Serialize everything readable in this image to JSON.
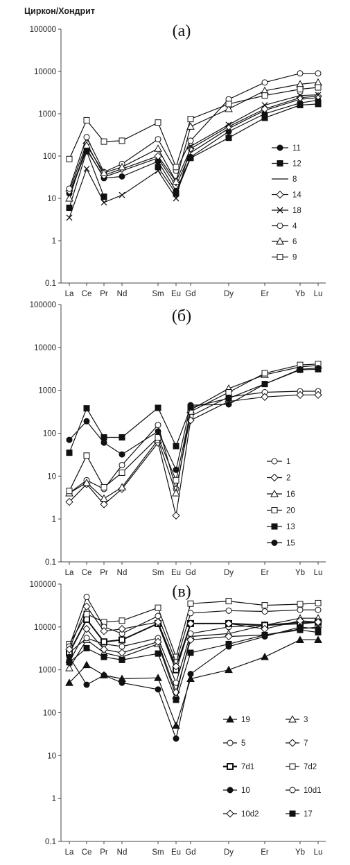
{
  "chart_data": [
    {
      "type": "line",
      "panel_label": "(a)",
      "ylabel": "Циркон/Хондрит",
      "yscale": "log",
      "ylim": [
        0.1,
        100000
      ],
      "yticks": [
        "0.1",
        "1",
        "10",
        "100",
        "1000",
        "10000",
        "100000"
      ],
      "categories": [
        "La",
        "Ce",
        "Pr",
        "Nd",
        "Sm",
        "Eu",
        "Gd",
        "Dy",
        "Er",
        "Yb",
        "Lu"
      ],
      "legend_position": "right",
      "series": [
        {
          "name": "11",
          "marker": "circle-filled",
          "values": [
            13,
            150,
            30,
            33,
            75,
            15,
            95,
            380,
            1000,
            1800,
            2100
          ]
        },
        {
          "name": "12",
          "marker": "square-filled",
          "values": [
            6,
            130,
            11,
            null,
            55,
            13,
            90,
            270,
            800,
            1600,
            1700
          ]
        },
        {
          "name": "8",
          "marker": "none",
          "values": [
            12,
            140,
            32,
            45,
            90,
            20,
            120,
            450,
            1200,
            2200,
            2400
          ]
        },
        {
          "name": "14",
          "marker": "diamond-open",
          "values": [
            15,
            200,
            35,
            50,
            100,
            25,
            150,
            500,
            1300,
            2400,
            2600
          ]
        },
        {
          "name": "18",
          "marker": "x",
          "values": [
            3.5,
            50,
            8,
            12,
            45,
            10,
            170,
            550,
            1600,
            2700,
            2800
          ]
        },
        {
          "name": "4",
          "marker": "circle-open",
          "values": [
            17,
            280,
            42,
            65,
            250,
            45,
            230,
            2200,
            5500,
            9000,
            9000
          ]
        },
        {
          "name": "6",
          "marker": "triangle-open",
          "values": [
            10,
            180,
            40,
            55,
            150,
            25,
            500,
            1300,
            3500,
            5000,
            5500
          ]
        },
        {
          "name": "9",
          "marker": "square-open",
          "values": [
            85,
            700,
            220,
            230,
            620,
            55,
            750,
            1700,
            2700,
            3800,
            4200
          ]
        }
      ]
    },
    {
      "type": "line",
      "panel_label": "(б)",
      "ylabel": "",
      "yscale": "log",
      "ylim": [
        0.1,
        100000
      ],
      "yticks": [
        "0.1",
        "1",
        "10",
        "100",
        "1000",
        "10000",
        "100000"
      ],
      "categories": [
        "La",
        "Ce",
        "Pr",
        "Nd",
        "Sm",
        "Eu",
        "Gd",
        "Dy",
        "Er",
        "Yb",
        "Lu"
      ],
      "legend_position": "right",
      "series": [
        {
          "name": "1",
          "marker": "circle-open",
          "values": [
            4,
            8,
            5,
            18,
            155,
            5,
            250,
            700,
            900,
            950,
            950
          ]
        },
        {
          "name": "2",
          "marker": "diamond-open",
          "values": [
            2.5,
            6.5,
            2.2,
            5,
            60,
            1.2,
            200,
            550,
            700,
            780,
            780
          ]
        },
        {
          "name": "16",
          "marker": "triangle-open",
          "values": [
            4,
            7,
            3,
            5.5,
            70,
            4,
            350,
            1100,
            2300,
            3500,
            3800
          ]
        },
        {
          "name": "20",
          "marker": "square-open",
          "values": [
            4.5,
            30,
            5.5,
            12,
            80,
            8,
            320,
            900,
            2500,
            3900,
            4100
          ]
        },
        {
          "name": "13",
          "marker": "square-filled",
          "values": [
            35,
            380,
            80,
            80,
            390,
            50,
            400,
            650,
            1400,
            3000,
            3100
          ]
        },
        {
          "name": "15",
          "marker": "circle-filled",
          "values": [
            70,
            190,
            60,
            32,
            110,
            14,
            450,
            470,
            1400,
            3100,
            3300
          ]
        }
      ]
    },
    {
      "type": "line",
      "panel_label": "(в)",
      "ylabel": "",
      "yscale": "log",
      "ylim": [
        0.1,
        100000
      ],
      "yticks": [
        "0.1",
        "1",
        "10",
        "100",
        "1000",
        "10000",
        "100000"
      ],
      "categories": [
        "La",
        "Ce",
        "Pr",
        "Nd",
        "Sm",
        "Eu",
        "Gd",
        "Dy",
        "Er",
        "Yb",
        "Lu"
      ],
      "legend_position": "bottom-right",
      "series": [
        {
          "name": "19",
          "marker": "triangle-filled",
          "values": [
            500,
            1300,
            750,
            620,
            650,
            50,
            620,
            1000,
            2000,
            5000,
            5000
          ]
        },
        {
          "name": "3",
          "marker": "triangle-open",
          "values": [
            1100,
            5000,
            2500,
            2000,
            4000,
            250,
            6000,
            7000,
            11000,
            16000,
            16000
          ]
        },
        {
          "name": "5",
          "marker": "circle-open",
          "values": [
            2500,
            5500,
            4000,
            3500,
            5500,
            500,
            7000,
            10000,
            11000,
            13000,
            13000
          ]
        },
        {
          "name": "7",
          "marker": "diamond-open",
          "values": [
            1500,
            9000,
            3000,
            2500,
            4500,
            300,
            5000,
            6000,
            6500,
            9000,
            10000
          ]
        },
        {
          "name": "7d1",
          "marker": "square-open-bold",
          "values": [
            2500,
            15000,
            4500,
            5000,
            12000,
            1000,
            12000,
            12000,
            11000,
            12000,
            13000
          ]
        },
        {
          "name": "7d2",
          "marker": "square-open",
          "values": [
            4000,
            20000,
            13000,
            14000,
            28000,
            2000,
            35000,
            40000,
            32000,
            34000,
            36000
          ]
        },
        {
          "name": "10",
          "marker": "circle-filled",
          "values": [
            2000,
            450,
            750,
            500,
            350,
            25,
            800,
            3500,
            6000,
            10000,
            9000
          ]
        },
        {
          "name": "10d1",
          "marker": "circle-open",
          "values": [
            3500,
            50000,
            10000,
            7000,
            18000,
            1500,
            21000,
            24000,
            23000,
            25000,
            25000
          ]
        },
        {
          "name": "10d2",
          "marker": "diamond-open",
          "values": [
            3000,
            30000,
            8000,
            9000,
            13000,
            1200,
            12000,
            12000,
            9000,
            14000,
            13000
          ]
        },
        {
          "name": "17",
          "marker": "square-filled",
          "values": [
            1500,
            3200,
            2000,
            1700,
            2400,
            200,
            2500,
            4000,
            6500,
            8500,
            7500
          ]
        }
      ]
    }
  ]
}
